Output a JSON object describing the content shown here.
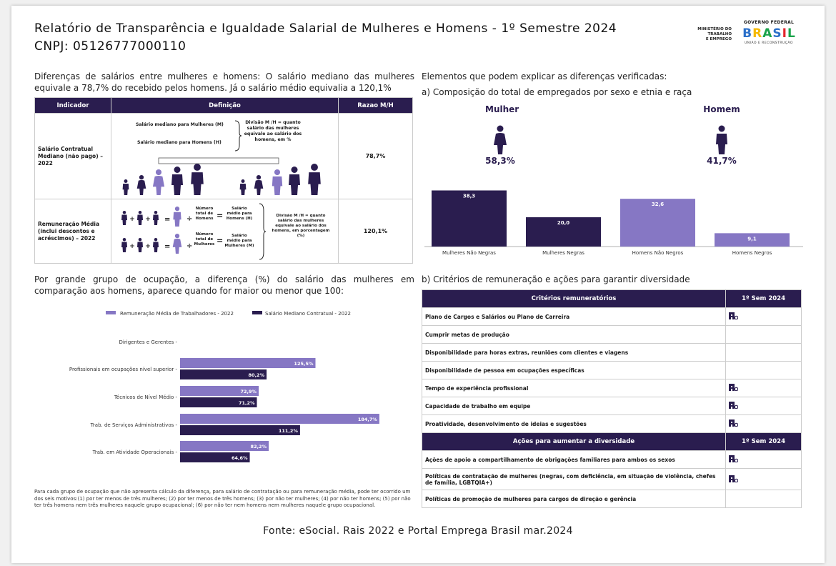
{
  "header": {
    "title_line1": "Relatório de Transparência e Igualdade Salarial de Mulheres e Homens - 1º Semestre 2024",
    "title_line2": "CNPJ: 05126777000110",
    "ministry": [
      "MINISTÉRIO DO",
      "TRABALHO",
      "E EMPREGO"
    ],
    "gov_top": "GOVERNO FEDERAL",
    "gov_word": "BRASIL",
    "gov_bottom": "UNIÃO E RECONSTRUÇÃO"
  },
  "left": {
    "intro": "Diferenças de salários entre mulheres e homens: O salário mediano das mulheres equivale a 78,7% do recebido pelos homens. Já o salário médio equivalia a 120,1%",
    "table": {
      "headers": [
        "Indicador",
        "Definição",
        "Razao M/H"
      ],
      "row1": {
        "indicator": "Salário Contratual Mediano (não pago) – 2022",
        "def_a": "Salário mediano para Mulheres (M)",
        "def_b": "Salário mediano para Homens (H)",
        "def_c": "Divisão M /H = quanto salário das mulheres equivale ao salário dos homens, em %",
        "ratio": "78,7%"
      },
      "row2": {
        "indicator": "Remuneração Média (inclui descontos e acréscimos) – 2022",
        "num_a": "Número total de Homens",
        "sal_a": "Salário médio para Homens (H)",
        "num_b": "Número total de Mulheres",
        "sal_b": "Salário médio para Mulheres (M)",
        "def_c": "Divisão M /H = quanto salário das mulheres equivale ao salário dos homens, em porcentagem (%)",
        "ratio": "120,1%"
      }
    },
    "occupation_intro": "Por grande grupo de ocupação, a diferença (%) do salário das mulheres em comparação aos homens, aparece quando for maior ou menor que 100:",
    "note": "Para cada grupo de ocupação que não apresenta cálculo da diferença, para salário de contratação ou para remuneração média, pode ter ocorrido um dos seis motivos:(1) por ter menos de três mulheres; (2) por ter menos de três homens; (3) por não ter mulheres; (4) por não ter homens; (5) por não ter três homens nem três mulheres naquele grupo ocupacional; (6) por não ter nem homens nem mulheres naquele grupo ocupacional."
  },
  "right": {
    "intro": "Elementos que podem explicar as diferenças verificadas:",
    "a_title": "a) Composição do total de empregados por sexo e etnia e raça",
    "mulher_label": "Mulher",
    "mulher_pct": "58,3%",
    "homem_label": "Homem",
    "homem_pct": "41,7%",
    "b_title": "b) Critérios de remuneração e ações para garantir diversidade",
    "crit_header": "Critérios remuneratórios",
    "sem_header": "1º Sem 2024",
    "criteria": [
      {
        "label": "Plano de Cargos e Salários ou Plano de Carreira",
        "checked": true
      },
      {
        "label": "Cumprir metas de produção",
        "checked": false
      },
      {
        "label": "Disponibilidade para horas extras, reuniões com clientes e viagens",
        "checked": false
      },
      {
        "label": "Disponibilidade de pessoa em ocupações específicas",
        "checked": false
      },
      {
        "label": "Tempo de experiência profissional",
        "checked": true
      },
      {
        "label": "Capacidade de trabalho em equipe",
        "checked": true
      },
      {
        "label": "Proatividade, desenvolvimento de ideias e sugestões",
        "checked": true
      }
    ],
    "actions_header": "Ações para aumentar a diversidade",
    "actions": [
      {
        "label": "Ações de apoio a compartilhamento de obrigações familiares para ambos os sexos",
        "checked": true
      },
      {
        "label": "Políticas de contratação de mulheres (negras, com deficiência, em situação de violência, chefes de família, LGBTQIA+)",
        "checked": true
      },
      {
        "label": "Políticas de promoção de mulheres para cargos de direção e gerência",
        "checked": false
      }
    ]
  },
  "footer": "Fonte: eSocial. Rais 2022 e Portal Emprega Brasil mar.2024",
  "colors": {
    "dark": "#2a1d4f",
    "light": "#8677c4"
  },
  "chart_data": [
    {
      "type": "bar",
      "categories": [
        "Mulheres Não Negras",
        "Mulheres Negras",
        "Homens Não Negros",
        "Homens Negros"
      ],
      "values": [
        38.3,
        20.0,
        32.6,
        9.1
      ],
      "labels": [
        "38,3",
        "20,0",
        "32,6",
        "9,1"
      ],
      "colors": [
        "#2a1d4f",
        "#2a1d4f",
        "#8677c4",
        "#8677c4"
      ]
    },
    {
      "type": "bar",
      "orientation": "horizontal",
      "legend": [
        "Remuneração Média de Trabalhadores - 2022",
        "Salário Mediano Contratual - 2022"
      ],
      "categories": [
        "Dirigentes e Gerentes",
        "Profissionais em ocupações nível superior",
        "Técnicos de Nível Médio",
        "Trab. de Serviços Administrativos",
        "Trab. em Atividade Operacionais"
      ],
      "series": [
        {
          "name": "Remuneração Média de Trabalhadores - 2022",
          "values": [
            null,
            125.5,
            72.9,
            184.7,
            82.2
          ],
          "labels": [
            "",
            "125,5%",
            "72,9%",
            "184,7%",
            "82,2%"
          ]
        },
        {
          "name": "Salário Mediano Contratual - 2022",
          "values": [
            null,
            80.2,
            71.2,
            111.2,
            64.6
          ],
          "labels": [
            "",
            "80,2%",
            "71,2%",
            "111,2%",
            "64,6%"
          ]
        }
      ]
    }
  ]
}
